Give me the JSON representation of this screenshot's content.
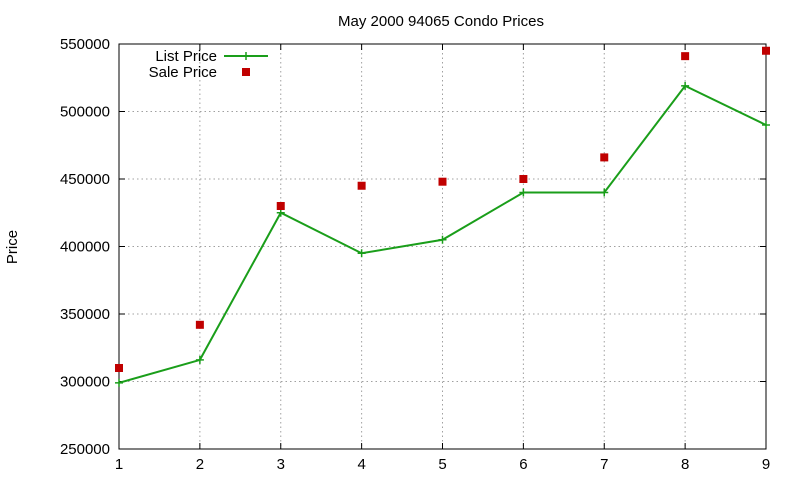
{
  "chart_data": {
    "type": "line",
    "title": "May 2000 94065 Condo Prices",
    "xlabel": "",
    "ylabel": "Price",
    "xlim": [
      1,
      9
    ],
    "ylim": [
      250000,
      550000
    ],
    "xticks": [
      1,
      2,
      3,
      4,
      5,
      6,
      7,
      8,
      9
    ],
    "yticks": [
      250000,
      300000,
      350000,
      400000,
      450000,
      500000,
      550000
    ],
    "grid": true,
    "legend_position": "top-left",
    "series": [
      {
        "name": "List Price",
        "style": "line-with-plus-markers",
        "color": "#1a9e1a",
        "x": [
          1,
          2,
          3,
          4,
          5,
          6,
          7,
          8,
          9
        ],
        "values": [
          299000,
          316000,
          425000,
          395000,
          405000,
          440000,
          440000,
          519000,
          490000
        ]
      },
      {
        "name": "Sale Price",
        "style": "square-markers",
        "color": "#c00000",
        "x": [
          1,
          2,
          3,
          4,
          5,
          6,
          7,
          8,
          9
        ],
        "values": [
          310000,
          342000,
          430000,
          445000,
          448000,
          450000,
          466000,
          541000,
          545000
        ]
      }
    ]
  }
}
